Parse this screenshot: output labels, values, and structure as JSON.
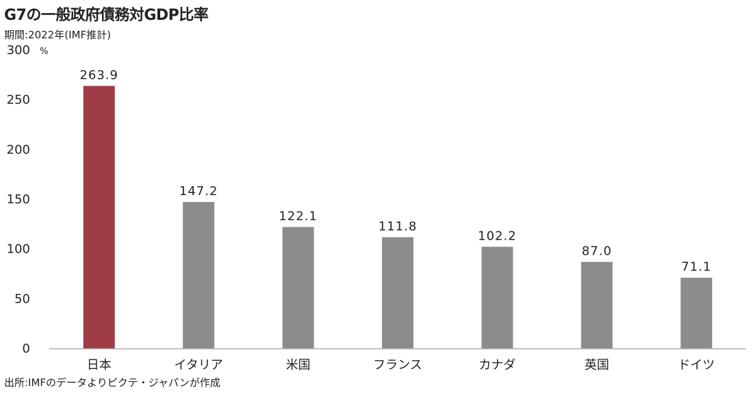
{
  "header": {
    "title": "G7の一般政府債務対GDP比率",
    "subtitle": "期間:2022年(IMF推計)"
  },
  "footer": {
    "source": "出所:IMFのデータよりピクテ・ジャパンが作成"
  },
  "chart_data": {
    "type": "bar",
    "title": "G7の一般政府債務対GDP比率",
    "subtitle": "期間:2022年(IMF推計)",
    "unit": "%",
    "categories": [
      "日本",
      "イタリア",
      "米国",
      "フランス",
      "カナダ",
      "英国",
      "ドイツ"
    ],
    "values": [
      263.9,
      147.2,
      122.1,
      111.8,
      102.2,
      87.0,
      71.1
    ],
    "value_labels": [
      "263.9",
      "147.2",
      "122.1",
      "111.8",
      "102.2",
      "87.0",
      "71.1"
    ],
    "ylim": [
      0,
      300
    ],
    "yticks": [
      0,
      50,
      100,
      150,
      200,
      250,
      300
    ],
    "grid": false,
    "colors": {
      "highlight": "#9e3d45",
      "default": "#8c8c8c",
      "axis": "#b0b0b0"
    },
    "highlight_index": 0
  }
}
